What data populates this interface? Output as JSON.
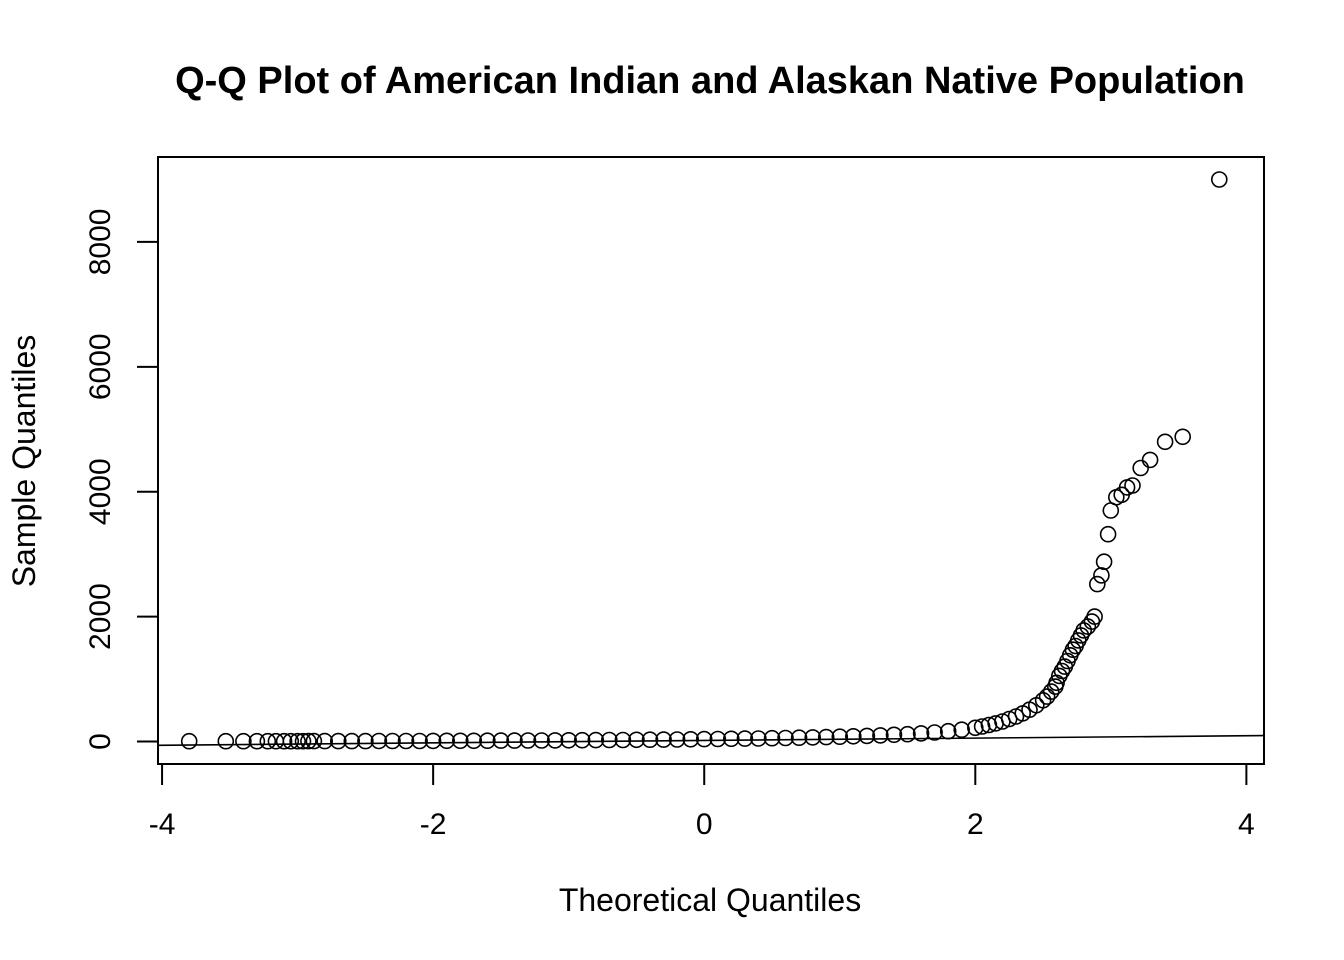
{
  "chart_data": {
    "type": "scatter",
    "title": "Q-Q Plot of American Indian and Alaskan Native Population",
    "xlabel": "Theoretical Quantiles",
    "ylabel": "Sample Quantiles",
    "xlim": [
      -4.03,
      4.13
    ],
    "ylim": [
      -360,
      9360
    ],
    "xticks": [
      -4,
      -2,
      0,
      2,
      4
    ],
    "yticks": [
      0,
      2000,
      4000,
      6000,
      8000
    ],
    "grid": false,
    "legend": "none",
    "point_color": "#000000",
    "reference_line": {
      "x": [
        -4.03,
        4.13
      ],
      "y": [
        -60,
        95
      ]
    },
    "series": [
      {
        "points": [
          [
            -3.8,
            5
          ],
          [
            -3.53,
            5
          ],
          [
            -3.4,
            5
          ],
          [
            -3.3,
            5
          ],
          [
            -3.22,
            5
          ],
          [
            -3.16,
            5
          ],
          [
            -3.1,
            5
          ],
          [
            -3.05,
            5
          ],
          [
            -3.0,
            5
          ],
          [
            -2.96,
            5
          ],
          [
            -2.92,
            6
          ],
          [
            -2.88,
            6
          ],
          [
            -2.8,
            6
          ],
          [
            -2.7,
            6
          ],
          [
            -2.6,
            7
          ],
          [
            -2.5,
            7
          ],
          [
            -2.4,
            8
          ],
          [
            -2.3,
            8
          ],
          [
            -2.2,
            9
          ],
          [
            -2.1,
            9
          ],
          [
            -2.0,
            10
          ],
          [
            -1.9,
            11
          ],
          [
            -1.8,
            11
          ],
          [
            -1.7,
            12
          ],
          [
            -1.6,
            13
          ],
          [
            -1.5,
            14
          ],
          [
            -1.4,
            15
          ],
          [
            -1.3,
            16
          ],
          [
            -1.2,
            17
          ],
          [
            -1.1,
            18
          ],
          [
            -1.0,
            19
          ],
          [
            -0.9,
            21
          ],
          [
            -0.8,
            22
          ],
          [
            -0.7,
            24
          ],
          [
            -0.6,
            25
          ],
          [
            -0.5,
            27
          ],
          [
            -0.4,
            29
          ],
          [
            -0.3,
            31
          ],
          [
            -0.2,
            33
          ],
          [
            -0.1,
            35
          ],
          [
            0.0,
            38
          ],
          [
            0.1,
            40
          ],
          [
            0.2,
            43
          ],
          [
            0.3,
            46
          ],
          [
            0.4,
            49
          ],
          [
            0.5,
            53
          ],
          [
            0.6,
            57
          ],
          [
            0.7,
            61
          ],
          [
            0.8,
            66
          ],
          [
            0.9,
            71
          ],
          [
            1.0,
            77
          ],
          [
            1.1,
            83
          ],
          [
            1.2,
            90
          ],
          [
            1.3,
            98
          ],
          [
            1.4,
            107
          ],
          [
            1.5,
            117
          ],
          [
            1.6,
            130
          ],
          [
            1.7,
            145
          ],
          [
            1.8,
            165
          ],
          [
            1.9,
            190
          ],
          [
            2.0,
            220
          ],
          [
            2.05,
            240
          ],
          [
            2.1,
            265
          ],
          [
            2.15,
            290
          ],
          [
            2.2,
            320
          ],
          [
            2.25,
            360
          ],
          [
            2.3,
            400
          ],
          [
            2.35,
            450
          ],
          [
            2.4,
            510
          ],
          [
            2.45,
            580
          ],
          [
            2.5,
            660
          ],
          [
            2.53,
            720
          ],
          [
            2.56,
            800
          ],
          [
            2.59,
            880
          ],
          [
            2.6,
            940
          ],
          [
            2.62,
            1050
          ],
          [
            2.64,
            1130
          ],
          [
            2.66,
            1200
          ],
          [
            2.68,
            1290
          ],
          [
            2.7,
            1380
          ],
          [
            2.72,
            1470
          ],
          [
            2.74,
            1530
          ],
          [
            2.76,
            1620
          ],
          [
            2.78,
            1700
          ],
          [
            2.8,
            1780
          ],
          [
            2.83,
            1840
          ],
          [
            2.86,
            1920
          ],
          [
            2.88,
            2000
          ],
          [
            2.9,
            2520
          ],
          [
            2.93,
            2660
          ],
          [
            2.95,
            2880
          ],
          [
            2.98,
            3320
          ],
          [
            3.0,
            3700
          ],
          [
            3.04,
            3910
          ],
          [
            3.08,
            3950
          ],
          [
            3.12,
            4070
          ],
          [
            3.16,
            4100
          ],
          [
            3.22,
            4380
          ],
          [
            3.29,
            4510
          ],
          [
            3.4,
            4800
          ],
          [
            3.53,
            4880
          ],
          [
            3.8,
            9000
          ]
        ]
      }
    ]
  }
}
